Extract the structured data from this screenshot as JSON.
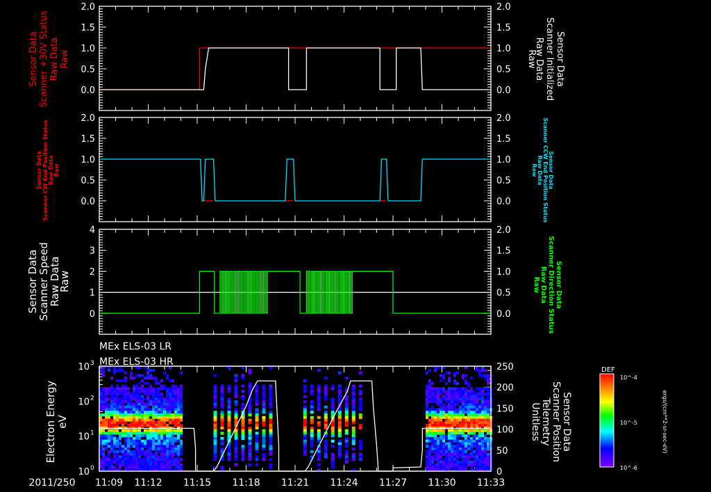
{
  "colors": {
    "background": "#000000",
    "axis": "#ffffff",
    "red": "#ff0000",
    "cyan": "#00e0ff",
    "green": "#00ff00",
    "white": "#ffffff"
  },
  "time_axis": {
    "start_label": "2011/250",
    "ticks": [
      "11:09",
      "11:12",
      "11:15",
      "11:18",
      "11:21",
      "11:24",
      "11:27",
      "11:30",
      "11:33"
    ],
    "start_min": 0,
    "end_min": 24
  },
  "chart_data": [
    {
      "type": "line",
      "panel": 1,
      "left_ylabel": [
        "Sensor Data",
        "Scanner +30V Status",
        "Raw Data",
        "Raw"
      ],
      "right_ylabel": [
        "Sensor Data",
        "Scanner Initialized",
        "Raw Data",
        "Raw"
      ],
      "left_yticks": [
        "2.0",
        "1.5",
        "1.0",
        "0.5",
        "0.0"
      ],
      "right_yticks": [
        "2.0",
        "1.5",
        "1.0",
        "0.5",
        "0.0"
      ],
      "ylim": [
        -0.5,
        2.0
      ],
      "series": [
        {
          "name": "Scanner +30V Status",
          "color": "red",
          "points": [
            [
              0,
              0
            ],
            [
              6.15,
              0
            ],
            [
              6.15,
              1
            ],
            [
              6.9,
              1
            ],
            [
              11.5,
              1
            ],
            [
              11.5,
              1
            ],
            [
              12.7,
              1
            ],
            [
              12.7,
              1
            ],
            [
              17.1,
              1
            ],
            [
              17.1,
              1
            ],
            [
              18.2,
              1
            ],
            [
              24,
              1
            ]
          ]
        },
        {
          "name": "Scanner Initialized",
          "color": "white",
          "points": [
            [
              0,
              0
            ],
            [
              6.4,
              0
            ],
            [
              6.5,
              0.5
            ],
            [
              6.7,
              1
            ],
            [
              11.6,
              1
            ],
            [
              11.6,
              0
            ],
            [
              12.7,
              0
            ],
            [
              12.7,
              1
            ],
            [
              17.2,
              1
            ],
            [
              17.2,
              0
            ],
            [
              18.2,
              0
            ],
            [
              18.2,
              1
            ],
            [
              19.7,
              1
            ],
            [
              19.8,
              0
            ],
            [
              24,
              0
            ]
          ]
        }
      ]
    },
    {
      "type": "line",
      "panel": 2,
      "left_ylabel": [
        "Sensor Data",
        "Scanner CW End Position Status",
        "Raw Data",
        "Raw"
      ],
      "right_ylabel": [
        "Sensor Data",
        "Scanner CCW End Position Status",
        "Raw Data",
        "Raw"
      ],
      "left_yticks": [
        "2.0",
        "1.5",
        "1.0",
        "0.5",
        "0.0"
      ],
      "right_yticks": [
        "2.0",
        "1.5",
        "1.0",
        "0.5",
        "0.0"
      ],
      "ylim": [
        -0.5,
        2.0
      ],
      "series": [
        {
          "name": "Scanner CW End Position Status",
          "color": "red",
          "points": [
            [
              6.3,
              0
            ],
            [
              7.0,
              0
            ],
            [
              null,
              null
            ],
            [
              11.4,
              0
            ],
            [
              11.9,
              0
            ],
            [
              null,
              null
            ],
            [
              17.2,
              0
            ],
            [
              17.6,
              0
            ]
          ]
        },
        {
          "name": "Scanner CCW End Position Status",
          "color": "cyan",
          "points": [
            [
              0,
              1
            ],
            [
              6.2,
              1
            ],
            [
              6.3,
              0
            ],
            [
              6.4,
              0
            ],
            [
              6.5,
              1
            ],
            [
              7.0,
              1
            ],
            [
              7.1,
              0
            ],
            [
              11.4,
              0
            ],
            [
              11.5,
              1
            ],
            [
              11.9,
              1
            ],
            [
              12.0,
              0
            ],
            [
              17.2,
              0
            ],
            [
              17.3,
              1
            ],
            [
              17.6,
              1
            ],
            [
              17.7,
              0
            ],
            [
              19.7,
              0
            ],
            [
              19.8,
              1
            ],
            [
              24,
              1
            ]
          ]
        }
      ]
    },
    {
      "type": "line",
      "panel": 3,
      "left_ylabel": [
        "Sensor Data",
        "Scanner Speed",
        "Raw Data",
        "Raw"
      ],
      "right_ylabel": [
        "Sensor Data",
        "Scanner Direction Status",
        "Raw Data",
        "Raw"
      ],
      "left_yticks": [
        "4",
        "3",
        "2",
        "1",
        "0"
      ],
      "right_yticks": [
        "2.0",
        "1.5",
        "1.0",
        "0.5",
        "0.0"
      ],
      "ylim_left": [
        -1,
        4
      ],
      "ylim_right": [
        -0.5,
        2.0
      ],
      "reference_line": {
        "value_left": 1,
        "color": "white"
      },
      "series": [
        {
          "name": "Scanner Speed / Direction",
          "color": "green",
          "segments": [
            {
              "t0": 0,
              "t1": 6.15,
              "v": 0
            },
            {
              "t0": 6.15,
              "t1": 7.05,
              "v": 2
            },
            {
              "t0": 7.05,
              "t1": 7.4,
              "v": 0
            },
            {
              "t0": 7.4,
              "t1": 10.3,
              "oscillate": true,
              "cycles": 18
            },
            {
              "t0": 10.3,
              "t1": 12.3,
              "v": 2
            },
            {
              "t0": 12.3,
              "t1": 12.7,
              "v": 0
            },
            {
              "t0": 12.7,
              "t1": 15.5,
              "oscillate": true,
              "cycles": 18
            },
            {
              "t0": 15.5,
              "t1": 18.0,
              "v": 2
            },
            {
              "t0": 18.0,
              "t1": 24,
              "v": 0
            }
          ]
        }
      ]
    },
    {
      "type": "heatmap",
      "panel": 4,
      "titles": [
        "MEx ELS-03 LR",
        "MEx ELS-03 HR"
      ],
      "left_ylabel": [
        "Electron Energy",
        "eV"
      ],
      "right_ylabel": [
        "Sensor Data",
        "Scanner Position",
        "Telemetry",
        "Unitless"
      ],
      "left_yticks": [
        "10^3",
        "10^2",
        "10^1",
        "10^0"
      ],
      "right_yticks": [
        "250",
        "200",
        "150",
        "100",
        "50",
        "0"
      ],
      "ylim_left_log": [
        0,
        3
      ],
      "ylim_right": [
        0,
        250
      ],
      "colorbar": {
        "label": "DEF",
        "ticks": [
          "10^-4",
          "10^-5",
          "10^-6"
        ],
        "units": "ergs/(cm**2-sr-sec-eV)"
      },
      "data_blocks": [
        {
          "t0": 0.0,
          "t1": 5.0,
          "kind": "dense"
        },
        {
          "t0": 7.0,
          "t1": 10.6,
          "kind": "stripes"
        },
        {
          "t0": 12.5,
          "t1": 16.1,
          "kind": "stripes"
        },
        {
          "t0": 20.0,
          "t1": 24.0,
          "kind": "dense"
        }
      ],
      "position_trace": {
        "color": "white",
        "points": [
          [
            0,
            102
          ],
          [
            5.0,
            102
          ],
          [
            5.8,
            102
          ],
          [
            5.9,
            55
          ],
          [
            5.9,
            0
          ],
          [
            7.0,
            0
          ],
          [
            7.2,
            10
          ],
          [
            9.0,
            155
          ],
          [
            9.4,
            195
          ],
          [
            9.7,
            215
          ],
          [
            10.8,
            215
          ],
          [
            10.9,
            140
          ],
          [
            11.0,
            60
          ],
          [
            11.0,
            0
          ],
          [
            12.6,
            0
          ],
          [
            12.8,
            10
          ],
          [
            14.5,
            140
          ],
          [
            15.2,
            190
          ],
          [
            15.4,
            215
          ],
          [
            16.7,
            215
          ],
          [
            16.8,
            150
          ],
          [
            17.0,
            60
          ],
          [
            17.1,
            0
          ],
          [
            18.0,
            0
          ],
          [
            18.0,
            8
          ],
          [
            19.7,
            10
          ],
          [
            19.8,
            50
          ],
          [
            19.8,
            102
          ],
          [
            24,
            102
          ]
        ]
      }
    }
  ]
}
